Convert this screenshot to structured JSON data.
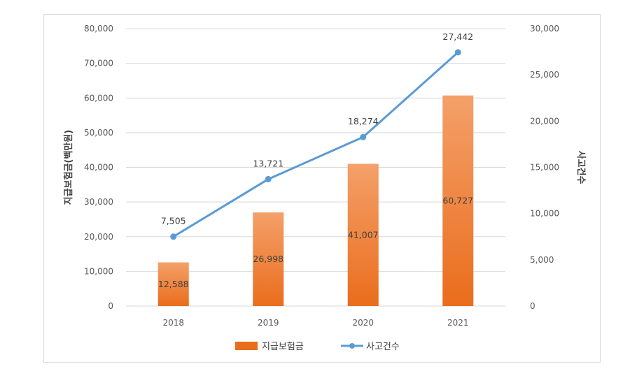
{
  "chart_data": {
    "type": "bar",
    "categories": [
      "2018",
      "2019",
      "2020",
      "2021"
    ],
    "series": [
      {
        "name": "지급보험금",
        "type": "bar",
        "axis": "left",
        "values": [
          12588,
          26998,
          41007,
          60727
        ],
        "labels": [
          "12,588",
          "26,998",
          "41,007",
          "60,727"
        ]
      },
      {
        "name": "사고건수",
        "type": "line",
        "axis": "right",
        "values": [
          7505,
          13721,
          18274,
          27442
        ],
        "labels": [
          "7,505",
          "13,721",
          "18,274",
          "27,442"
        ]
      }
    ],
    "ylabel": "지급보험금(백만원)",
    "y2label": "사고건수",
    "ylim": [
      0,
      80000
    ],
    "y2lim": [
      0,
      30000
    ],
    "yticks": [
      "0",
      "10,000",
      "20,000",
      "30,000",
      "40,000",
      "50,000",
      "60,000",
      "70,000",
      "80,000"
    ],
    "y2ticks": [
      "0",
      "5,000",
      "10,000",
      "15,000",
      "20,000",
      "25,000",
      "30,000"
    ],
    "grid": true,
    "legend": "bottom"
  },
  "colors": {
    "bar_top": "#f4a06a",
    "bar_bottom": "#ea6d1c",
    "line": "#5b9bd5",
    "grid": "#d9d9d9"
  }
}
